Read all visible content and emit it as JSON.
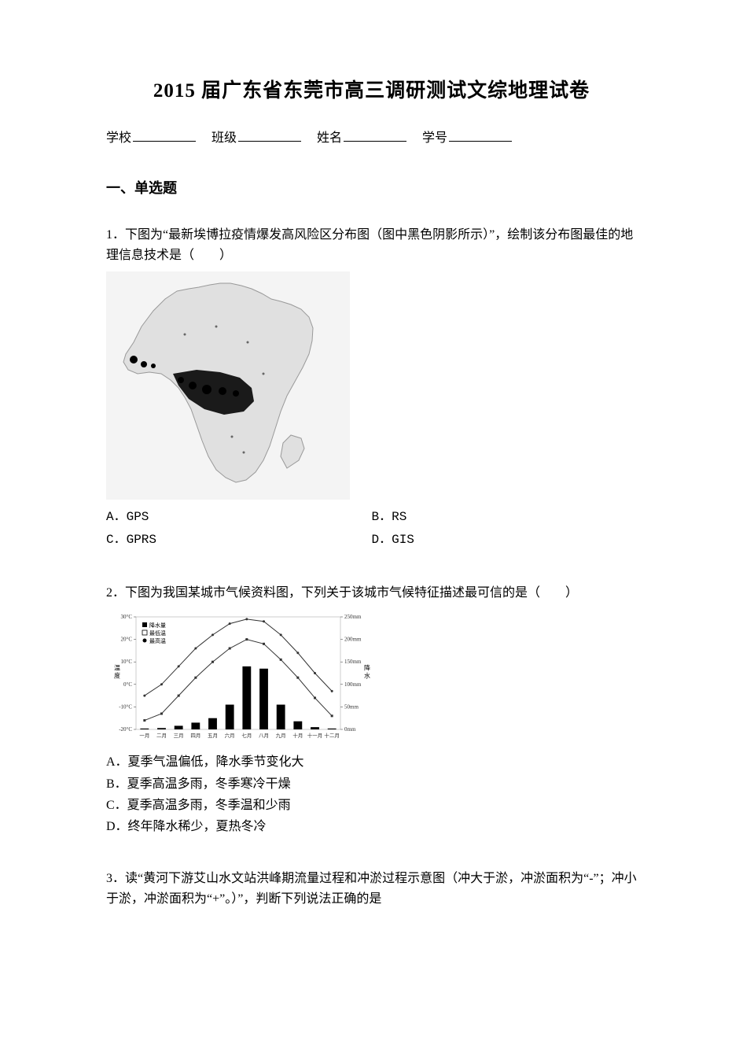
{
  "title": "2015 届广东省东莞市高三调研测试文综地理试卷",
  "form": {
    "school_label": "学校",
    "class_label": "班级",
    "name_label": "姓名",
    "id_label": "学号"
  },
  "section1": {
    "header": "一、单选题"
  },
  "q1": {
    "number": "1．",
    "text": "下图为“最新埃博拉疫情爆发高风险区分布图（图中黑色阴影所示）”，绘制该分布图最佳的地理信息技术是（　　）",
    "options": {
      "a": "A．GPS",
      "b": "B．RS",
      "c": "C．GPRS",
      "d": "D．GIS"
    },
    "map": {
      "type": "map",
      "description": "africa-outline-with-shaded-risk-regions",
      "outline_color": "#888888",
      "shaded_color": "#000000",
      "background_color": "#f8f8f8"
    }
  },
  "q2": {
    "number": "2．",
    "text": "下图为我国某城市气候资料图，下列关于该城市气候特征描述最可信的是（　　）",
    "options": {
      "a": "A．夏季气温偏低，降水季节变化大",
      "b": "B．夏季高温多雨，冬季寒冷干燥",
      "c": "C．夏季高温多雨，冬季温和少雨",
      "d": "D．终年降水稀少，夏热冬冷"
    },
    "chart": {
      "type": "climate-chart",
      "y_left_label": "温度",
      "y_right_label": "降水",
      "y_left_ticks": [
        "30°C",
        "20°C",
        "10°C",
        "0°C",
        "-10°C",
        "-20°C"
      ],
      "y_right_ticks": [
        "250mm",
        "200mm",
        "150mm",
        "100mm",
        "50mm",
        "0mm"
      ],
      "x_labels": [
        "一月",
        "二月",
        "三月",
        "四月",
        "五月",
        "六月",
        "七月",
        "八月",
        "九月",
        "十月",
        "十一月",
        "十二月"
      ],
      "legend": [
        "降水量",
        "最低温",
        "最高温"
      ],
      "precipitation": [
        2,
        3,
        8,
        15,
        25,
        55,
        140,
        135,
        55,
        18,
        5,
        2
      ],
      "temp_high": [
        -5,
        0,
        8,
        16,
        22,
        27,
        29,
        28,
        22,
        14,
        5,
        -3
      ],
      "temp_low": [
        -16,
        -13,
        -5,
        3,
        10,
        16,
        20,
        18,
        11,
        3,
        -6,
        -14
      ],
      "bar_color": "#000000",
      "line_color": "#333333",
      "grid_color": "#e0e0e0",
      "background_color": "#ffffff",
      "font_size": 7
    }
  },
  "q3": {
    "number": "3．",
    "text": "读“黄河下游艾山水文站洪峰期流量过程和冲淤过程示意图（冲大于淤，冲淤面积为“-”；冲小于淤，冲淤面积为“+”。）”，判断下列说法正确的是"
  }
}
